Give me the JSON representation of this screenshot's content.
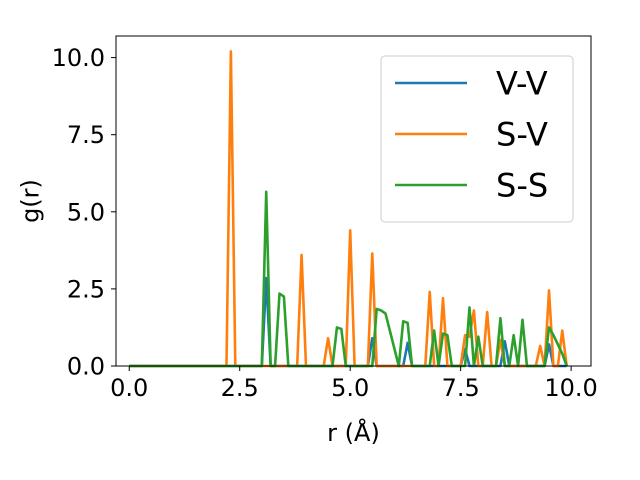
{
  "chart_data": {
    "type": "line",
    "title": "",
    "xlabel": "r (Å)",
    "ylabel": "g(r)",
    "xlim": [
      -0.3,
      10.45
    ],
    "ylim": [
      0,
      10.7
    ],
    "xticks": [
      0.0,
      2.5,
      5.0,
      7.5,
      10.0
    ],
    "xtick_labels": [
      "0.0",
      "2.5",
      "5.0",
      "7.5",
      "10.0"
    ],
    "yticks": [
      0.0,
      2.5,
      5.0,
      7.5,
      10.0
    ],
    "ytick_labels": [
      "0.0",
      "2.5",
      "5.0",
      "7.5",
      "10.0"
    ],
    "grid": false,
    "legend_position": "top-right",
    "series": [
      {
        "name": "V-V",
        "color": "#1f77b4",
        "x": [
          0.0,
          3.0,
          3.1,
          3.2,
          5.4,
          5.5,
          5.6,
          6.2,
          6.3,
          6.4,
          7.5,
          7.6,
          7.7,
          8.4,
          8.5,
          8.6,
          9.4,
          9.5,
          9.6,
          9.9
        ],
        "y": [
          0.0,
          0.0,
          2.85,
          0.0,
          0.0,
          0.9,
          0.0,
          0.0,
          0.75,
          0.0,
          0.0,
          0.55,
          0.0,
          0.0,
          0.8,
          0.0,
          0.0,
          0.7,
          0.0,
          0.0
        ]
      },
      {
        "name": "S-V",
        "color": "#ff7f0e",
        "x": [
          0.0,
          2.2,
          2.3,
          2.4,
          3.8,
          3.9,
          4.0,
          4.4,
          4.5,
          4.6,
          4.9,
          5.0,
          5.1,
          5.4,
          5.5,
          5.6,
          6.7,
          6.8,
          6.9,
          7.0,
          7.1,
          7.2,
          7.5,
          7.6,
          7.7,
          7.8,
          7.9,
          8.0,
          8.1,
          8.2,
          8.3,
          8.4,
          8.5,
          9.2,
          9.3,
          9.4,
          9.5,
          9.6,
          9.7,
          9.8,
          9.9
        ],
        "y": [
          0.0,
          0.0,
          10.2,
          0.0,
          0.0,
          3.6,
          0.0,
          0.0,
          0.9,
          0.0,
          0.0,
          4.4,
          0.0,
          0.0,
          3.65,
          0.0,
          0.0,
          2.4,
          0.0,
          0.0,
          2.2,
          0.0,
          0.0,
          1.0,
          0.95,
          1.8,
          0.0,
          0.0,
          1.75,
          0.0,
          0.0,
          0.85,
          0.0,
          0.0,
          0.65,
          0.0,
          2.45,
          0.0,
          0.0,
          1.15,
          0.0
        ]
      },
      {
        "name": "S-S",
        "color": "#2ca02c",
        "x": [
          0.0,
          3.0,
          3.1,
          3.2,
          3.3,
          3.4,
          3.5,
          3.6,
          4.6,
          4.7,
          4.8,
          4.9,
          5.5,
          5.6,
          5.7,
          5.8,
          6.1,
          6.2,
          6.3,
          6.4,
          6.8,
          6.9,
          7.0,
          7.1,
          7.2,
          7.3,
          7.6,
          7.7,
          7.8,
          7.9,
          8.0,
          8.3,
          8.4,
          8.5,
          8.6,
          8.7,
          8.8,
          8.9,
          9.0,
          9.4,
          9.5,
          9.6,
          9.7,
          9.8,
          9.9
        ],
        "y": [
          0.0,
          0.0,
          5.65,
          0.0,
          0.0,
          2.35,
          2.25,
          0.0,
          0.0,
          1.25,
          1.2,
          0.0,
          0.0,
          1.85,
          1.8,
          1.7,
          0.0,
          1.45,
          1.4,
          0.0,
          0.0,
          1.15,
          0.0,
          1.05,
          1.0,
          0.0,
          0.0,
          1.9,
          0.0,
          0.95,
          0.0,
          0.0,
          1.55,
          0.0,
          0.0,
          1.0,
          0.0,
          1.5,
          0.0,
          0.0,
          1.25,
          1.0,
          0.7,
          0.4,
          0.0
        ]
      }
    ]
  }
}
